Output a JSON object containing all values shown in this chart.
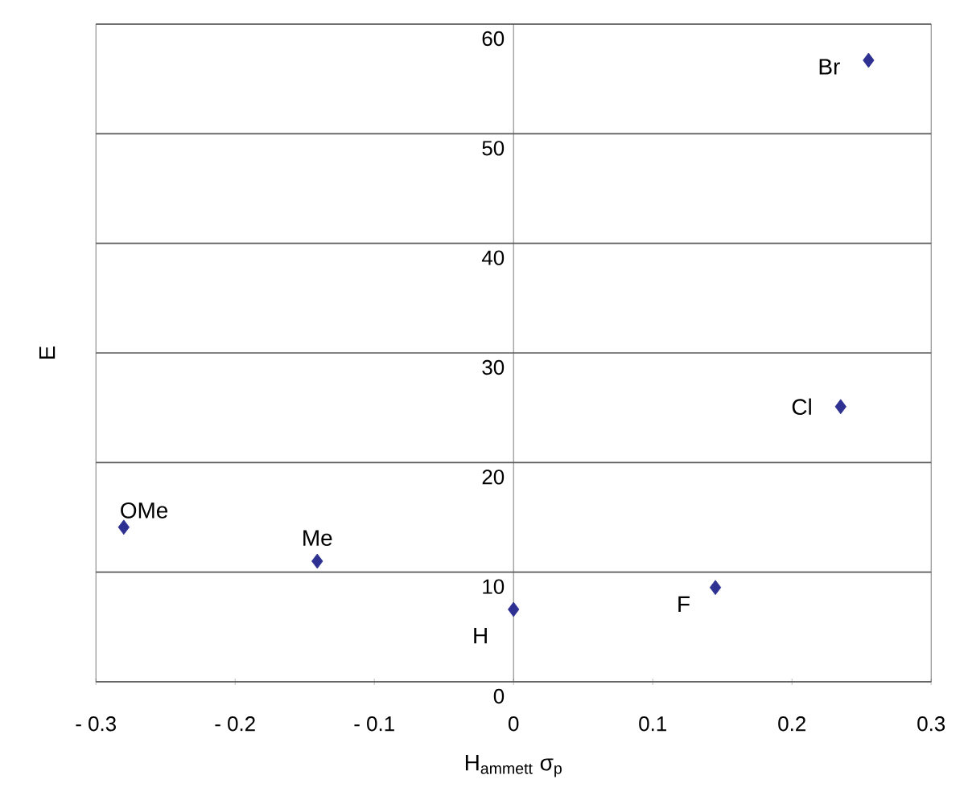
{
  "chart_data": {
    "type": "scatter",
    "xlabel": "H$_{ammett}$ σ$_{p}$",
    "ylabel": "E",
    "x": [
      -0.28,
      -0.141,
      0,
      0.145,
      0.235,
      0.255
    ],
    "series": [
      {
        "color": "#2e3192",
        "values": [
          14.1,
          11.0,
          6.6,
          8.6,
          25.1,
          56.7
        ]
      }
    ],
    "marker": "diamond",
    "grid": "y",
    "xlim": [
      -0.3,
      0.3
    ],
    "xticks": [
      {
        "value": -0.3,
        "label": "- 0.3"
      },
      {
        "value": -0.2,
        "label": "- 0.2"
      },
      {
        "value": -0.1,
        "label": "- 0.1"
      },
      0,
      0.1,
      0.2,
      0.3
    ],
    "ylim": [
      0,
      60
    ],
    "yticks": [
      0,
      10,
      20,
      30,
      40,
      50,
      60
    ],
    "annotations": [
      {
        "text": "OMe",
        "x": -0.28,
        "y": 14.1
      },
      {
        "text": "Me",
        "x": -0.141,
        "y": 11.0
      },
      {
        "text": "H",
        "x": 0,
        "y": 6.6
      },
      {
        "text": "F",
        "x": 0.145,
        "y": 8.6
      },
      {
        "text": "Cl",
        "x": 0.235,
        "y": 25.1
      },
      {
        "text": "Br",
        "x": 0.255,
        "y": 56.7
      }
    ]
  }
}
